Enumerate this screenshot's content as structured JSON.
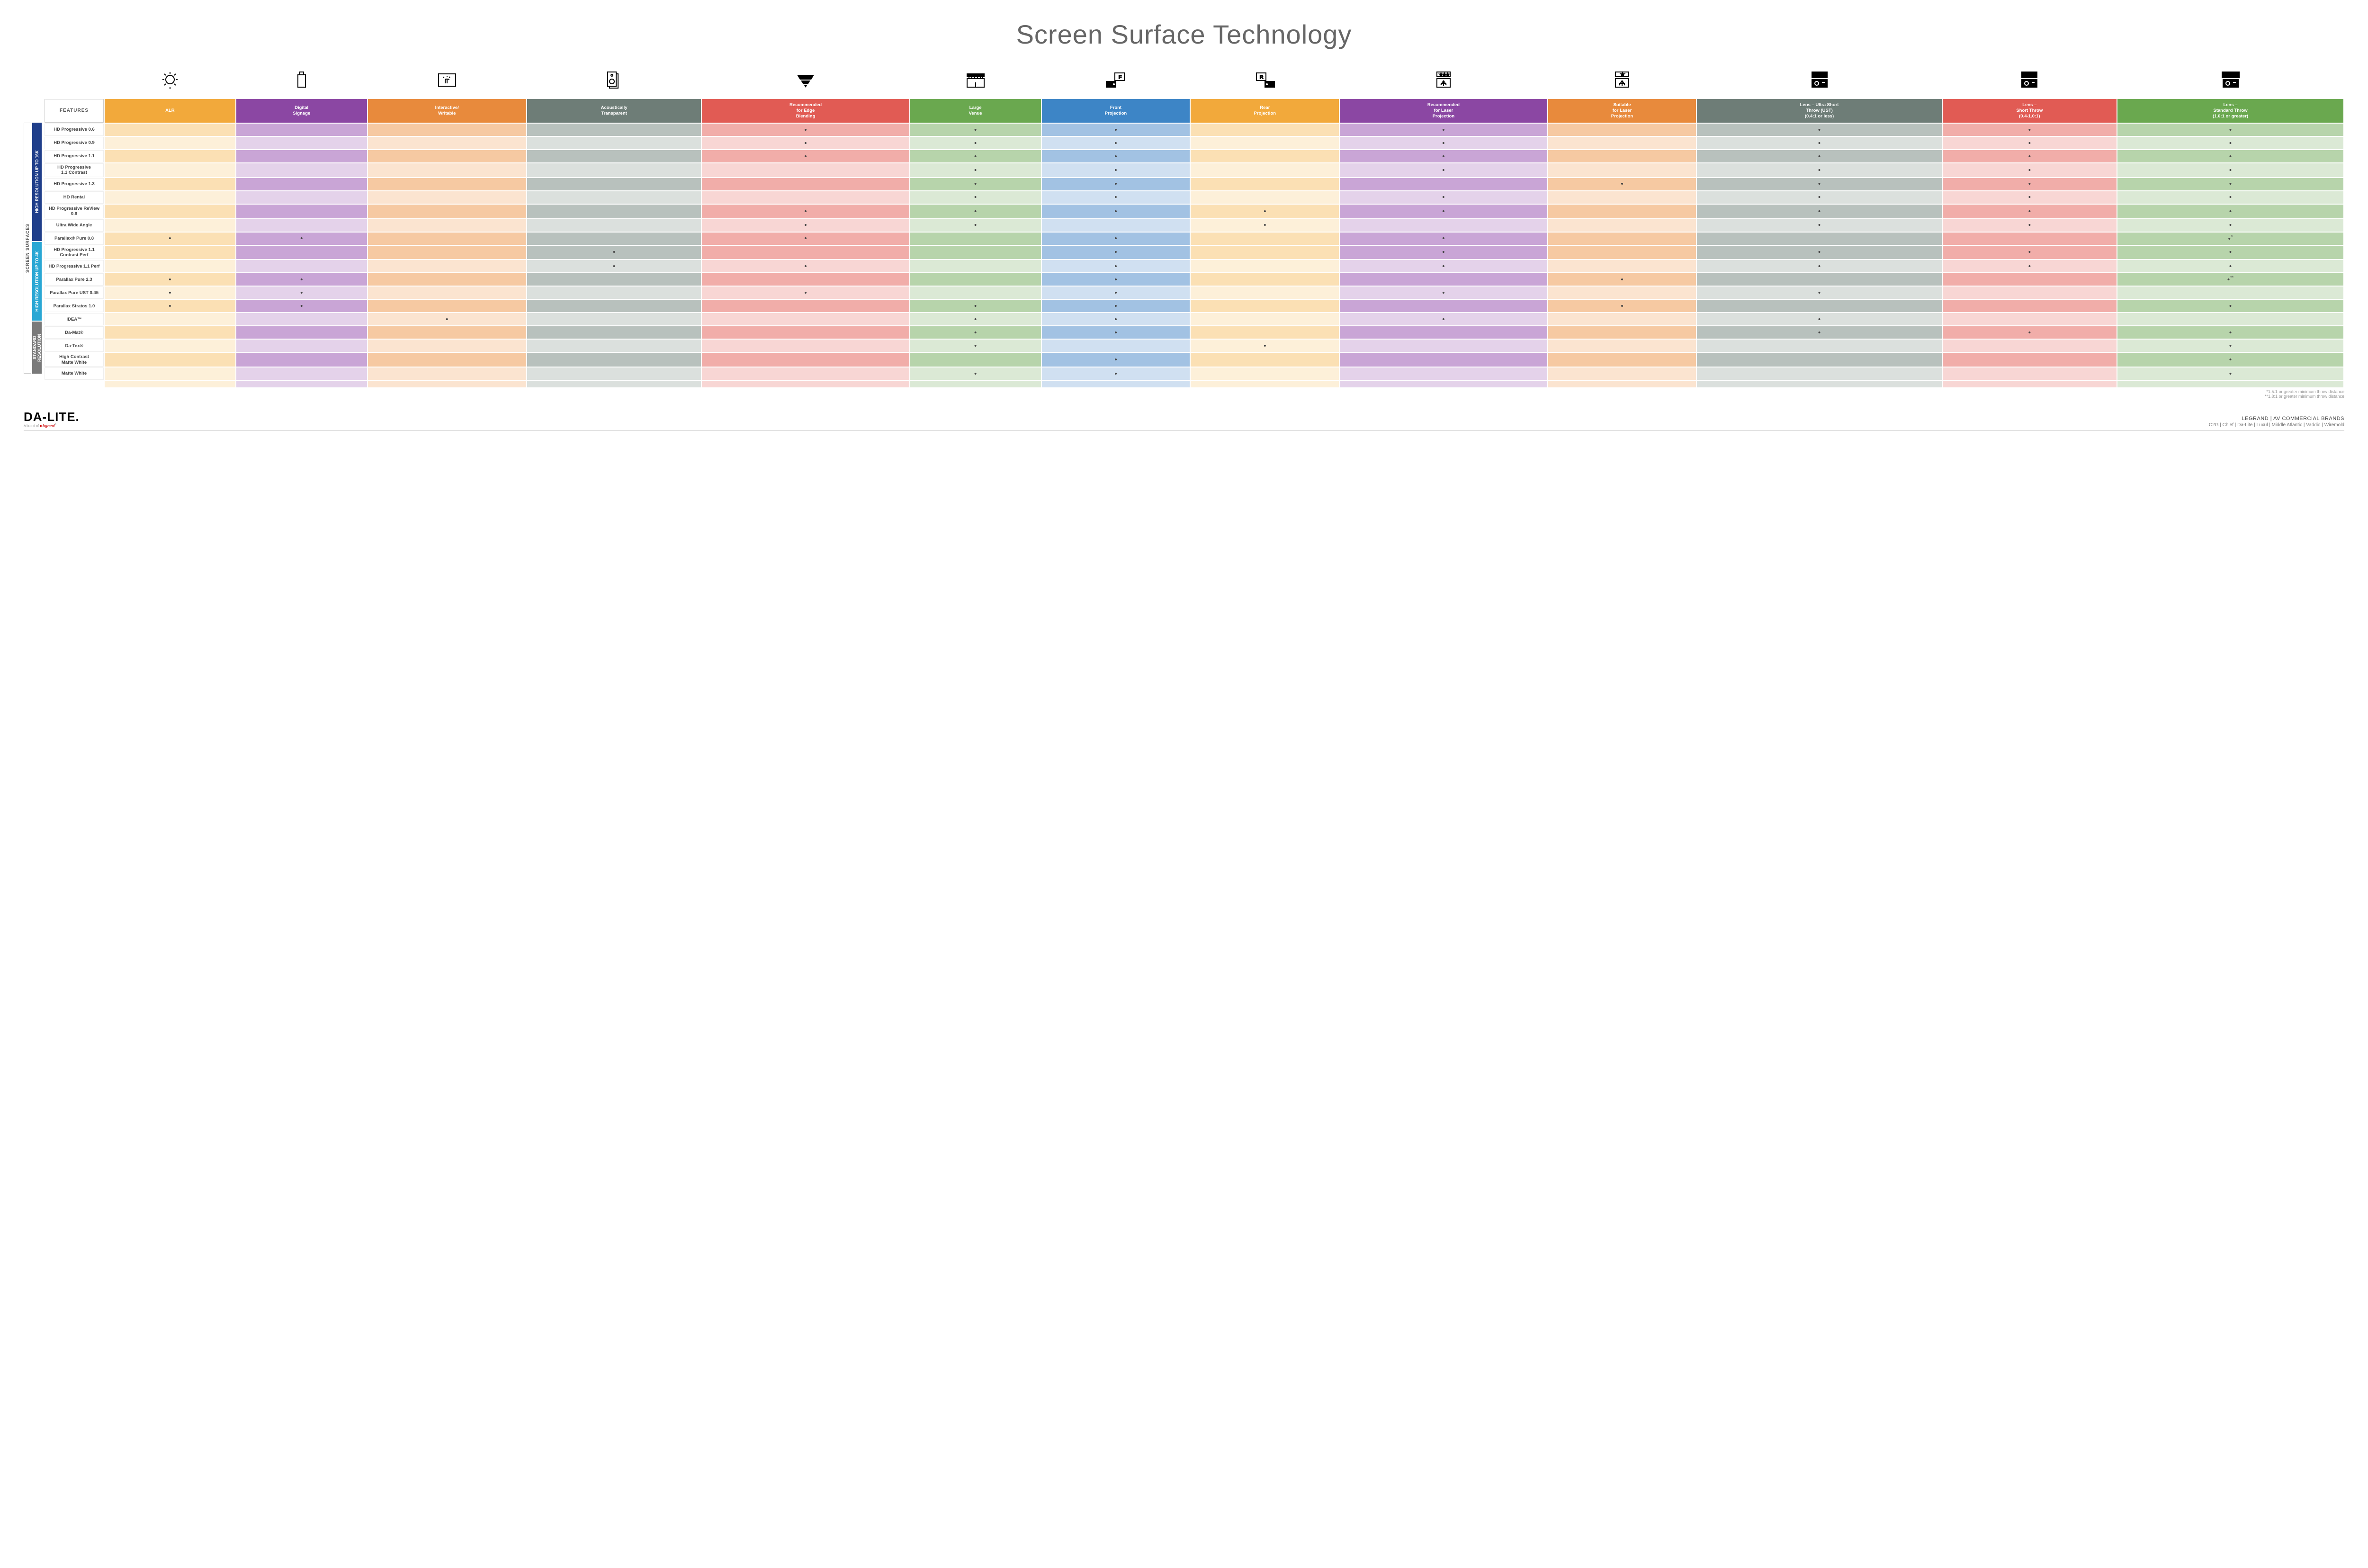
{
  "title": "Screen Surface Technology",
  "features_label": "FEATURES",
  "side_label": "SCREEN SURFACES",
  "columns": [
    {
      "key": "alr",
      "label": "ALR",
      "color": "#f2a93b",
      "light": "#fbe0b4",
      "lighter": "#fdf0d9"
    },
    {
      "key": "signage",
      "label": "Digital\nSignage",
      "color": "#8b47a3",
      "light": "#c9a5d6",
      "lighter": "#e4d2ea"
    },
    {
      "key": "writable",
      "label": "Interactive/\nWritable",
      "color": "#e88a3c",
      "light": "#f6c9a2",
      "lighter": "#fbe4d0"
    },
    {
      "key": "acoustic",
      "label": "Acoustically\nTransparent",
      "color": "#6e7d77",
      "light": "#b8c1bd",
      "lighter": "#dbe0dd"
    },
    {
      "key": "edge",
      "label": "Recommended\nfor Edge\nBlending",
      "color": "#e15b54",
      "light": "#f1ada9",
      "lighter": "#f8d6d4"
    },
    {
      "key": "venue",
      "label": "Large\nVenue",
      "color": "#6aa84f",
      "light": "#b7d4ab",
      "lighter": "#dbe9d5"
    },
    {
      "key": "front",
      "label": "Front\nProjection",
      "color": "#3d85c6",
      "light": "#a2c2e3",
      "lighter": "#d0e0f1"
    },
    {
      "key": "rear",
      "label": "Rear\nProjection",
      "color": "#f2a93b",
      "light": "#fbe0b4",
      "lighter": "#fdf0d9"
    },
    {
      "key": "reclaser",
      "label": "Recommended\nfor Laser\nProjection",
      "color": "#8b47a3",
      "light": "#c9a5d6",
      "lighter": "#e4d2ea"
    },
    {
      "key": "suitlaser",
      "label": "Suitable\nfor Laser\nProjection",
      "color": "#e88a3c",
      "light": "#f6c9a2",
      "lighter": "#fbe4d0"
    },
    {
      "key": "ust",
      "label": "Lens – Ultra Short\nThrow (UST)\n(0.4:1 or less)",
      "color": "#6e7d77",
      "light": "#b8c1bd",
      "lighter": "#dbe0dd"
    },
    {
      "key": "short",
      "label": "Lens –\nShort Throw\n(0.4-1.0:1)",
      "color": "#e15b54",
      "light": "#f1ada9",
      "lighter": "#f8d6d4"
    },
    {
      "key": "std",
      "label": "Lens –\nStandard Throw\n(1.0:1 or greater)",
      "color": "#6aa84f",
      "light": "#b7d4ab",
      "lighter": "#dbe9d5"
    }
  ],
  "groups": [
    {
      "label": "HIGH RESOLUTION UP TO 16K",
      "color": "#1f3e8a",
      "rows": [
        {
          "name": "HD Progressive 0.6",
          "cells": {
            "edge": "•",
            "venue": "•",
            "front": "•",
            "reclaser": "•",
            "ust": "•",
            "short": "•",
            "std": "•"
          }
        },
        {
          "name": "HD Progressive 0.9",
          "cells": {
            "edge": "•",
            "venue": "•",
            "front": "•",
            "reclaser": "•",
            "ust": "•",
            "short": "•",
            "std": "•"
          }
        },
        {
          "name": "HD Progressive 1.1",
          "cells": {
            "edge": "•",
            "venue": "•",
            "front": "•",
            "reclaser": "•",
            "ust": "•",
            "short": "•",
            "std": "•"
          }
        },
        {
          "name": "HD Progressive\n1.1 Contrast",
          "cells": {
            "venue": "•",
            "front": "•",
            "reclaser": "•",
            "ust": "•",
            "short": "•",
            "std": "•"
          }
        },
        {
          "name": "HD Progressive 1.3",
          "cells": {
            "venue": "•",
            "front": "•",
            "suitlaser": "•",
            "ust": "•",
            "short": "•",
            "std": "•"
          }
        },
        {
          "name": "HD Rental",
          "cells": {
            "venue": "•",
            "front": "•",
            "reclaser": "•",
            "ust": "•",
            "short": "•",
            "std": "•"
          }
        },
        {
          "name": "HD Progressive ReView 0.9",
          "cells": {
            "edge": "•",
            "venue": "•",
            "front": "•",
            "rear": "•",
            "reclaser": "•",
            "ust": "•",
            "short": "•",
            "std": "•"
          }
        },
        {
          "name": "Ultra Wide Angle",
          "cells": {
            "edge": "•",
            "venue": "•",
            "rear": "•",
            "ust": "•",
            "short": "•",
            "std": "•"
          }
        },
        {
          "name": "Parallax® Pure 0.8",
          "cells": {
            "alr": "•",
            "signage": "•",
            "edge": "•",
            "front": "•",
            "reclaser": "•",
            "std": "•*"
          }
        }
      ]
    },
    {
      "label": "HIGH RESOLUTION UP TO 4K",
      "color": "#2aa7d4",
      "rows": [
        {
          "name": "HD Progressive 1.1\nContrast Perf",
          "cells": {
            "acoustic": "•",
            "front": "•",
            "reclaser": "•",
            "ust": "•",
            "short": "•",
            "std": "•"
          }
        },
        {
          "name": "HD Progressive 1.1 Perf",
          "cells": {
            "acoustic": "•",
            "edge": "•",
            "front": "•",
            "reclaser": "•",
            "ust": "•",
            "short": "•",
            "std": "•"
          }
        },
        {
          "name": "Parallax Pure 2.3",
          "cells": {
            "alr": "•",
            "signage": "•",
            "front": "•",
            "suitlaser": "•",
            "std": "•**"
          }
        },
        {
          "name": "Parallax Pure UST 0.45",
          "cells": {
            "alr": "•",
            "signage": "•",
            "edge": "•",
            "front": "•",
            "reclaser": "•",
            "ust": "•"
          }
        },
        {
          "name": "Parallax Stratos 1.0",
          "cells": {
            "alr": "•",
            "signage": "•",
            "venue": "•",
            "front": "•",
            "suitlaser": "•",
            "std": "•"
          }
        },
        {
          "name": "IDEA™",
          "cells": {
            "writable": "•",
            "venue": "•",
            "front": "•",
            "reclaser": "•",
            "ust": "•"
          }
        }
      ]
    },
    {
      "label": "STANDARD\nRESOLUTION",
      "color": "#7a7a7a",
      "rows": [
        {
          "name": "Da-Mat®",
          "cells": {
            "venue": "•",
            "front": "•",
            "ust": "•",
            "short": "•",
            "std": "•"
          }
        },
        {
          "name": "Da-Tex®",
          "cells": {
            "venue": "•",
            "rear": "•",
            "std": "•"
          }
        },
        {
          "name": "High Contrast\nMatte White",
          "cells": {
            "front": "•",
            "std": "•"
          }
        },
        {
          "name": "Matte White",
          "cells": {
            "venue": "•",
            "front": "•",
            "std": "•"
          }
        }
      ]
    }
  ],
  "footnotes": [
    "*1.5:1 or greater minimum throw distance",
    "**1.8:1 or greater minimum throw distance"
  ],
  "logo": {
    "main": "DA-LITE.",
    "sub_prefix": "A brand of ",
    "sub_brand": "legrand"
  },
  "brands_title": "LEGRAND | AV COMMERCIAL BRANDS",
  "brands_list": "C2G  |  Chief  |  Da-Lite  |  Luxul  |  Middle Atlantic  |  Vaddio  |  Wiremold",
  "icons": [
    "bulb",
    "signage",
    "touch",
    "speaker",
    "blend",
    "venue",
    "front",
    "rear",
    "reclaser",
    "suitlaser",
    "ust",
    "short",
    "standard"
  ]
}
